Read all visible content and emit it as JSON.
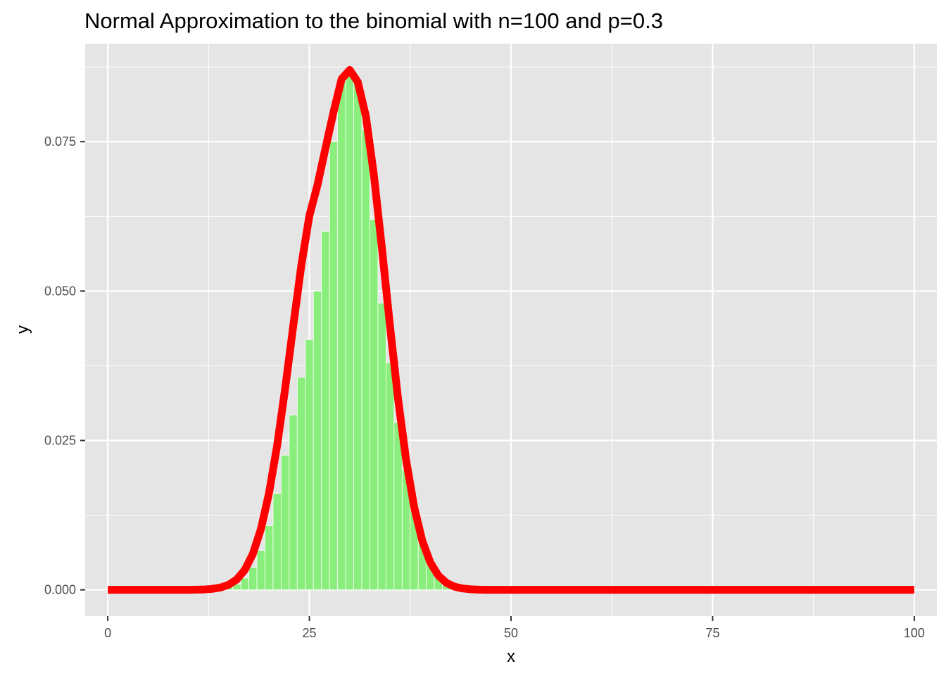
{
  "chart_data": {
    "type": "bar",
    "title": "Normal Approximation to the binomial with n=100 and p=0.3",
    "xlabel": "x",
    "ylabel": "y",
    "n": 100,
    "p": 0.3,
    "xlim": [
      -2.8,
      102.8
    ],
    "ylim": [
      -0.0044,
      0.0914
    ],
    "x_ticks": [
      0,
      25,
      50,
      75,
      100
    ],
    "x_tick_labels": [
      "0",
      "25",
      "50",
      "75",
      "100"
    ],
    "y_ticks": [
      0,
      0.025,
      0.05,
      0.075
    ],
    "y_tick_labels": [
      "0.000",
      "0.025",
      "0.050",
      "0.075"
    ],
    "grid": true,
    "colors": {
      "panel": "#e5e5e5",
      "grid": "#ffffff",
      "bars": "#8aee7c",
      "bar_outline": "#ffffff",
      "curve": "#ff0000",
      "tick_text": "#4d4d4d",
      "tick_mark": "#333333"
    },
    "series": [
      {
        "kind": "bars",
        "x": [
          0,
          1,
          2,
          3,
          4,
          5,
          6,
          7,
          8,
          9,
          10,
          11,
          12,
          13,
          14,
          15,
          16,
          17,
          18,
          19,
          20,
          21,
          22,
          23,
          24,
          25,
          26,
          27,
          28,
          29,
          30,
          31,
          32,
          33,
          34,
          35,
          36,
          37,
          38,
          39,
          40,
          41,
          42,
          43,
          44,
          45,
          46,
          47,
          48,
          49,
          50,
          51,
          52,
          53,
          54,
          55,
          56,
          57,
          58,
          59,
          60,
          61,
          62,
          63,
          64,
          65,
          66,
          67,
          68,
          69,
          70,
          71,
          72,
          73,
          74,
          75,
          76,
          77,
          78,
          79,
          80,
          81,
          82,
          83,
          84,
          85,
          86,
          87,
          88,
          89,
          90,
          91,
          92,
          93,
          94,
          95,
          96,
          97,
          98,
          99,
          100
        ],
        "values": [
          0,
          0,
          0,
          0,
          0,
          0,
          0,
          0,
          0,
          0,
          0,
          0,
          2e-05,
          6e-05,
          0.00017,
          0.00042,
          0.00095,
          0.00197,
          0.00376,
          0.0066,
          0.01075,
          0.01614,
          0.02254,
          0.02929,
          0.03557,
          0.04187,
          0.05,
          0.06,
          0.075,
          0.085,
          0.086,
          0.085,
          0.077,
          0.062,
          0.048,
          0.038,
          0.028,
          0.02,
          0.0134,
          0.0084,
          0.0048,
          0.0026,
          0.0013,
          0.0006,
          0.00026,
          0.0001,
          4e-05,
          1e-05,
          0,
          0,
          0,
          0,
          0,
          0,
          0,
          0,
          0,
          0,
          0,
          0,
          0,
          0,
          0,
          0,
          0,
          0,
          0,
          0,
          0,
          0,
          0,
          0,
          0,
          0,
          0,
          0,
          0,
          0,
          0,
          0,
          0,
          0,
          0,
          0,
          0,
          0,
          0,
          0,
          0,
          0,
          0,
          0,
          0,
          0,
          0,
          0,
          0,
          0,
          0,
          0,
          0
        ]
      },
      {
        "kind": "line",
        "x": [
          0,
          1,
          2,
          3,
          4,
          5,
          6,
          7,
          8,
          9,
          10,
          11,
          12,
          13,
          14,
          15,
          16,
          17,
          18,
          19,
          20,
          21,
          22,
          23,
          24,
          25,
          26,
          27,
          28,
          29,
          30,
          31,
          32,
          33,
          34,
          35,
          36,
          37,
          38,
          39,
          40,
          41,
          42,
          43,
          44,
          45,
          46,
          47,
          48,
          49,
          50,
          51,
          52,
          53,
          54,
          55,
          56,
          57,
          58,
          59,
          60,
          61,
          62,
          63,
          64,
          65,
          66,
          67,
          68,
          69,
          70,
          71,
          72,
          73,
          74,
          75,
          76,
          77,
          78,
          79,
          80,
          81,
          82,
          83,
          84,
          85,
          86,
          87,
          88,
          89,
          90,
          91,
          92,
          93,
          94,
          95,
          96,
          97,
          98,
          99,
          100
        ],
        "values": [
          0,
          0,
          0,
          0,
          0,
          0,
          0,
          0,
          0,
          0,
          1e-05,
          3e-05,
          7e-05,
          0.00017,
          0.00039,
          0.00085,
          0.00174,
          0.00335,
          0.00604,
          0.01022,
          0.01622,
          0.02414,
          0.03371,
          0.04417,
          0.05429,
          0.0626,
          0.06772,
          0.07392,
          0.08,
          0.0855,
          0.087,
          0.085,
          0.0793,
          0.0694,
          0.0571,
          0.0441,
          0.0319,
          0.0217,
          0.0138,
          0.0082,
          0.00457,
          0.00238,
          0.00116,
          0.00053,
          0.00023,
          9e-05,
          3e-05,
          1e-05,
          0,
          0,
          0,
          0,
          0,
          0,
          0,
          0,
          0,
          0,
          0,
          0,
          0,
          0,
          0,
          0,
          0,
          0,
          0,
          0,
          0,
          0,
          0,
          0,
          0,
          0,
          0,
          0,
          0,
          0,
          0,
          0,
          0,
          0,
          0,
          0,
          0,
          0,
          0,
          0,
          0,
          0,
          0,
          0,
          0,
          0,
          0,
          0,
          0,
          0,
          0,
          0,
          0
        ]
      }
    ]
  }
}
